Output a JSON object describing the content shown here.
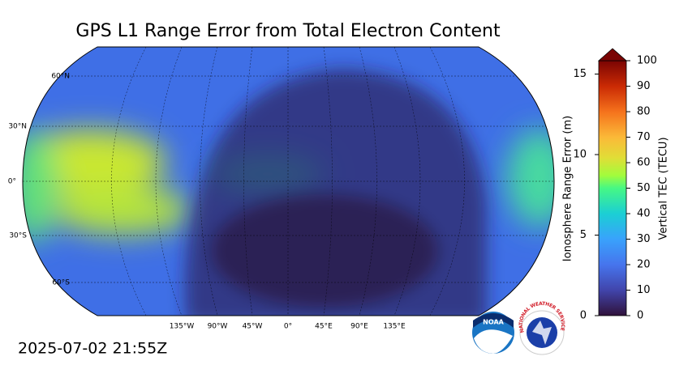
{
  "title": "GPS L1 Range Error from Total Electron Content",
  "timestamp": "2025-07-02 21:55Z",
  "map": {
    "lat_labels": [
      "60°N",
      "30°N",
      "0°",
      "30°S",
      "60°S"
    ],
    "lon_labels": [
      "135°W",
      "90°W",
      "45°W",
      "0°",
      "45°E",
      "90°E",
      "135°E"
    ]
  },
  "colorbar": {
    "left_label": "Ionosphere Range Error (m)",
    "left_lim": [
      0,
      15.83
    ],
    "left_ticks": [
      0,
      5,
      10,
      15
    ],
    "right_label": "Vertical TEC (TECU)",
    "right_lim": [
      0,
      100
    ],
    "right_ticks": [
      0,
      10,
      20,
      30,
      40,
      50,
      60,
      70,
      80,
      90,
      100
    ]
  },
  "logos": {
    "noaa": "NOAA",
    "nws": "NATIONAL WEATHER SERVICE"
  }
}
